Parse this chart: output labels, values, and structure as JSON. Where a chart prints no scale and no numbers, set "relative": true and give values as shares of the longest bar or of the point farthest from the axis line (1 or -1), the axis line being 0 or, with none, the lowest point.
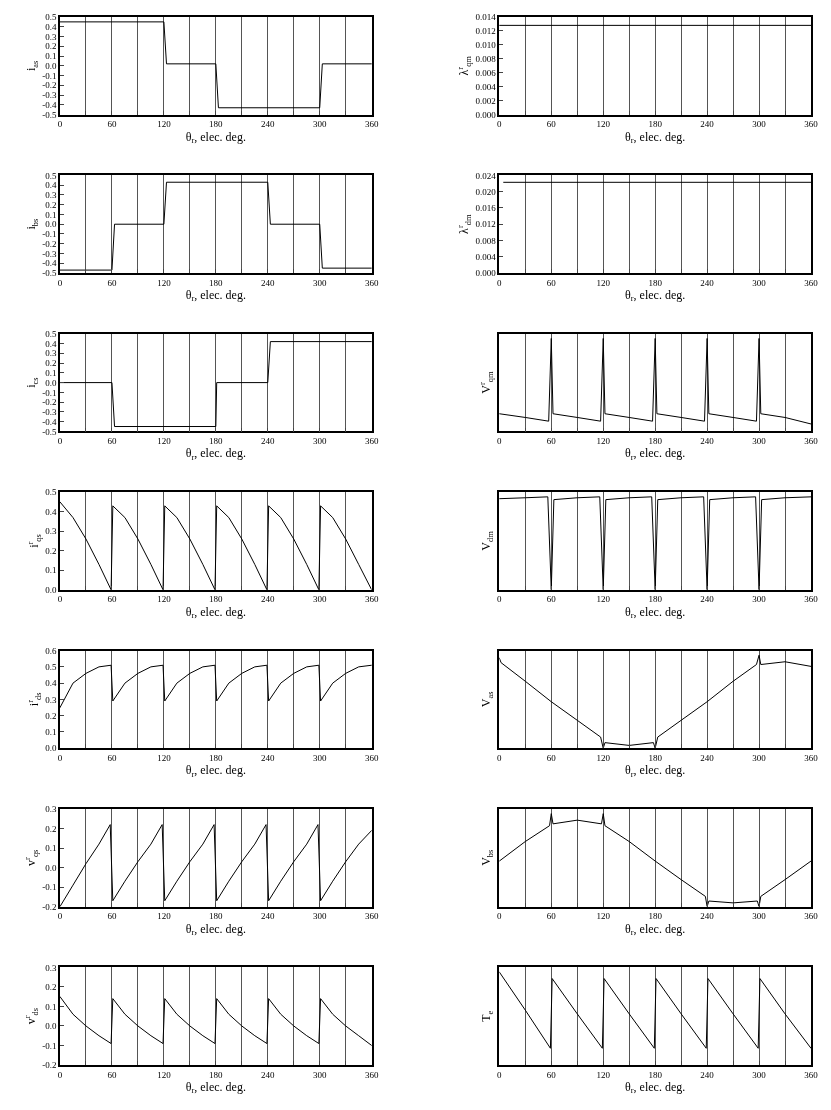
{
  "chart_data": [
    {
      "type": "line",
      "ylabel": "i$_{as}$",
      "xlabel": "θ$_{r}$, elec. deg.",
      "color": "#000000",
      "grid": "x",
      "x": [
        0,
        120,
        123,
        180,
        183,
        300,
        303,
        360
      ],
      "values": [
        0.45,
        0.45,
        0.02,
        0.02,
        -0.43,
        -0.43,
        0.02,
        0.02
      ],
      "xlim": [
        0,
        360
      ],
      "xticks": [
        0,
        {
          "value": 30,
          "label": null
        },
        60,
        {
          "value": 90,
          "label": null
        },
        120,
        {
          "value": 150,
          "label": null
        },
        180,
        {
          "value": 210,
          "label": null
        },
        240,
        {
          "value": 270,
          "label": null
        },
        300,
        {
          "value": 330,
          "label": null
        },
        360
      ],
      "ylim": [
        -0.5,
        0.5
      ],
      "yticks": [
        -0.5,
        -0.4,
        -0.3,
        -0.2,
        -0.1,
        {
          "value": 0,
          "label": "0.0"
        },
        0.1,
        0.2,
        0.3,
        0.4,
        0.5
      ]
    },
    {
      "type": "line",
      "ylabel": "λ$^{r}$$_{qm}$",
      "xlabel": "θ$_{r}$, elec. deg.",
      "color": "#000000",
      "grid": "x",
      "x": [
        0,
        360
      ],
      "values": [
        0.0128,
        0.0128
      ],
      "xlim": [
        0,
        360
      ],
      "xticks": [
        0,
        {
          "value": 30,
          "label": null
        },
        60,
        {
          "value": 90,
          "label": null
        },
        120,
        {
          "value": 150,
          "label": null
        },
        180,
        {
          "value": 210,
          "label": null
        },
        240,
        {
          "value": 270,
          "label": null
        },
        300,
        {
          "value": 330,
          "label": null
        },
        360
      ],
      "ylim": [
        0,
        0.014
      ],
      "yticks": [
        {
          "value": 0,
          "label": "0.000"
        },
        0.002,
        0.004,
        0.006,
        0.008,
        {
          "value": 0.01,
          "label": "0.010"
        },
        0.012,
        0.014
      ]
    },
    {
      "type": "line",
      "ylabel": "i$_{bs}$",
      "xlabel": "θ$_{r}$, elec. deg.",
      "color": "#000000",
      "grid": "x",
      "x": [
        0,
        60,
        63,
        120,
        123,
        240,
        243,
        300,
        303,
        360
      ],
      "values": [
        -0.47,
        -0.47,
        0.0,
        0.0,
        0.43,
        0.43,
        0.0,
        0.0,
        -0.45,
        -0.45
      ],
      "xlim": [
        0,
        360
      ],
      "xticks": [
        0,
        {
          "value": 30,
          "label": null
        },
        60,
        {
          "value": 90,
          "label": null
        },
        120,
        {
          "value": 150,
          "label": null
        },
        180,
        {
          "value": 210,
          "label": null
        },
        240,
        {
          "value": 270,
          "label": null
        },
        300,
        {
          "value": 330,
          "label": null
        },
        360
      ],
      "ylim": [
        -0.5,
        0.5
      ],
      "yticks": [
        -0.5,
        -0.4,
        -0.3,
        -0.2,
        -0.1,
        {
          "value": 0,
          "label": "0.0"
        },
        0.1,
        0.2,
        0.3,
        0.4,
        0.5
      ]
    },
    {
      "type": "line",
      "ylabel": "λ$^{r}$$_{dm}$",
      "xlabel": "θ$_{r}$, elec. deg.",
      "color": "#000000",
      "grid": "x",
      "x": [
        5,
        360
      ],
      "values": [
        0.0223,
        0.0223
      ],
      "xlim": [
        0,
        360
      ],
      "xticks": [
        0,
        {
          "value": 30,
          "label": null
        },
        60,
        {
          "value": 90,
          "label": null
        },
        120,
        {
          "value": 150,
          "label": null
        },
        180,
        {
          "value": 210,
          "label": null
        },
        240,
        {
          "value": 270,
          "label": null
        },
        300,
        {
          "value": 330,
          "label": null
        },
        360
      ],
      "ylim": [
        0,
        0.024
      ],
      "yticks": [
        {
          "value": 0,
          "label": "0.000"
        },
        0.004,
        0.008,
        0.012,
        0.016,
        {
          "value": 0.02,
          "label": "0.020"
        },
        0.024
      ]
    },
    {
      "type": "line",
      "ylabel": "i$_{cs}$",
      "xlabel": "θ$_{r}$, elec. deg.",
      "color": "#000000",
      "grid": "x",
      "x": [
        0,
        60,
        63,
        180,
        181,
        240,
        243,
        360
      ],
      "values": [
        0.0,
        0.0,
        -0.45,
        -0.45,
        0.0,
        0.0,
        0.42,
        0.42
      ],
      "xlim": [
        0,
        360
      ],
      "xticks": [
        0,
        {
          "value": 30,
          "label": null
        },
        60,
        {
          "value": 90,
          "label": null
        },
        120,
        {
          "value": 150,
          "label": null
        },
        180,
        {
          "value": 210,
          "label": null
        },
        240,
        {
          "value": 270,
          "label": null
        },
        300,
        {
          "value": 330,
          "label": null
        },
        360
      ],
      "ylim": [
        -0.5,
        0.5
      ],
      "yticks": [
        -0.5,
        -0.4,
        -0.3,
        -0.2,
        -0.1,
        {
          "value": 0,
          "label": "0.0"
        },
        0.1,
        0.2,
        0.3,
        0.4,
        0.5
      ]
    },
    {
      "type": "line",
      "relative": true,
      "tick_labels": "x",
      "ylabel": "V$^{r}$$_{qm}$",
      "xlabel": "θ$_{r}$, elec. deg.",
      "color": "#000000",
      "grid": "x",
      "x": [
        0,
        30,
        57,
        60,
        62,
        90,
        117,
        120,
        122,
        150,
        177,
        180,
        182,
        210,
        237,
        240,
        242,
        270,
        297,
        300,
        302,
        330,
        360
      ],
      "values": [
        0.19,
        0.15,
        0.11,
        1.0,
        0.19,
        0.15,
        0.11,
        1.0,
        0.19,
        0.15,
        0.11,
        1.0,
        0.19,
        0.15,
        0.11,
        1.0,
        0.19,
        0.15,
        0.11,
        1.0,
        0.19,
        0.15,
        0.08
      ],
      "xlim": [
        0,
        360
      ],
      "xticks": [
        0,
        {
          "value": 30,
          "label": null
        },
        60,
        {
          "value": 90,
          "label": null
        },
        120,
        {
          "value": 150,
          "label": null
        },
        180,
        {
          "value": 210,
          "label": null
        },
        240,
        {
          "value": 270,
          "label": null
        },
        300,
        {
          "value": 330,
          "label": null
        },
        360
      ]
    },
    {
      "type": "line",
      "ylabel": "i$^{r}$$_{qs}$",
      "xlabel": "θ$_{r}$, elec. deg.",
      "color": "#000000",
      "grid": "x",
      "x": [
        0,
        15,
        30,
        45,
        59,
        61,
        75,
        90,
        105,
        119,
        121,
        135,
        150,
        165,
        179,
        181,
        195,
        210,
        225,
        239,
        241,
        255,
        270,
        285,
        299,
        301,
        315,
        330,
        345,
        360
      ],
      "values": [
        0.45,
        0.37,
        0.26,
        0.13,
        0.0,
        0.43,
        0.37,
        0.26,
        0.13,
        0.0,
        0.43,
        0.37,
        0.26,
        0.13,
        0.0,
        0.43,
        0.37,
        0.26,
        0.13,
        0.0,
        0.43,
        0.37,
        0.26,
        0.13,
        0.0,
        0.43,
        0.37,
        0.26,
        0.13,
        0.0
      ],
      "xlim": [
        0,
        360
      ],
      "xticks": [
        0,
        {
          "value": 30,
          "label": null
        },
        60,
        {
          "value": 90,
          "label": null
        },
        120,
        {
          "value": 150,
          "label": null
        },
        180,
        {
          "value": 210,
          "label": null
        },
        240,
        {
          "value": 270,
          "label": null
        },
        300,
        {
          "value": 330,
          "label": null
        },
        360
      ],
      "ylim": [
        0,
        0.5
      ],
      "yticks": [
        {
          "value": 0,
          "label": "0.0"
        },
        0.1,
        0.2,
        0.3,
        0.4,
        0.5
      ]
    },
    {
      "type": "line",
      "relative": true,
      "tick_labels": "x",
      "ylabel": "V$_{dm}$",
      "xlabel": "θ$_{r}$, elec. deg.",
      "color": "#000000",
      "grid": "x",
      "x": [
        0,
        30,
        56,
        60,
        63,
        90,
        116,
        120,
        123,
        150,
        176,
        180,
        183,
        210,
        236,
        240,
        243,
        270,
        296,
        300,
        303,
        330,
        360
      ],
      "values": [
        0.98,
        0.99,
        1.0,
        0.0,
        0.97,
        0.99,
        1.0,
        0.0,
        0.97,
        0.99,
        1.0,
        0.0,
        0.97,
        0.99,
        1.0,
        0.0,
        0.97,
        0.99,
        1.0,
        0.0,
        0.97,
        0.99,
        1.0
      ],
      "xlim": [
        0,
        360
      ],
      "xticks": [
        0,
        {
          "value": 30,
          "label": null
        },
        60,
        {
          "value": 90,
          "label": null
        },
        120,
        {
          "value": 150,
          "label": null
        },
        180,
        {
          "value": 210,
          "label": null
        },
        240,
        {
          "value": 270,
          "label": null
        },
        300,
        {
          "value": 330,
          "label": null
        },
        360
      ]
    },
    {
      "type": "line",
      "ylabel": "i$^{r}$$_{ds}$",
      "xlabel": "θ$_{r}$, elec. deg.",
      "color": "#000000",
      "grid": "x",
      "x": [
        0,
        15,
        30,
        45,
        59,
        61,
        75,
        90,
        105,
        119,
        121,
        135,
        150,
        165,
        179,
        181,
        195,
        210,
        225,
        239,
        241,
        255,
        270,
        285,
        299,
        301,
        315,
        330,
        345,
        360
      ],
      "values": [
        0.25,
        0.4,
        0.46,
        0.5,
        0.51,
        0.29,
        0.4,
        0.46,
        0.5,
        0.51,
        0.29,
        0.4,
        0.46,
        0.5,
        0.51,
        0.29,
        0.4,
        0.46,
        0.5,
        0.51,
        0.29,
        0.4,
        0.46,
        0.5,
        0.51,
        0.29,
        0.4,
        0.46,
        0.5,
        0.51
      ],
      "xlim": [
        0,
        360
      ],
      "xticks": [
        0,
        {
          "value": 30,
          "label": null
        },
        60,
        {
          "value": 90,
          "label": null
        },
        120,
        {
          "value": 150,
          "label": null
        },
        180,
        {
          "value": 210,
          "label": null
        },
        240,
        {
          "value": 270,
          "label": null
        },
        300,
        {
          "value": 330,
          "label": null
        },
        360
      ],
      "ylim": [
        0,
        0.6
      ],
      "yticks": [
        {
          "value": 0,
          "label": "0.0"
        },
        0.1,
        0.2,
        0.3,
        0.4,
        0.5,
        0.6
      ]
    },
    {
      "type": "line",
      "relative": true,
      "tick_labels": "x",
      "ylabel": "V$_{as}$",
      "xlabel": "θ$_{r}$, elec. deg.",
      "color": "#000000",
      "grid": "x",
      "x": [
        0,
        2,
        30,
        60,
        90,
        117,
        120,
        122,
        150,
        178,
        180,
        183,
        210,
        240,
        270,
        297,
        300,
        302,
        330,
        360
      ],
      "values": [
        0.97,
        0.92,
        0.72,
        0.5,
        0.3,
        0.12,
        0.0,
        0.06,
        0.03,
        0.06,
        0.0,
        0.12,
        0.3,
        0.5,
        0.72,
        0.9,
        1.0,
        0.9,
        0.93,
        0.88
      ],
      "xlim": [
        0,
        360
      ],
      "xticks": [
        0,
        {
          "value": 30,
          "label": null
        },
        60,
        {
          "value": 90,
          "label": null
        },
        120,
        {
          "value": 150,
          "label": null
        },
        180,
        {
          "value": 210,
          "label": null
        },
        240,
        {
          "value": 270,
          "label": null
        },
        300,
        {
          "value": 330,
          "label": null
        },
        360
      ]
    },
    {
      "type": "line",
      "ylabel": "v$^{r}$$_{qs}$",
      "xlabel": "θ$_{r}$, elec. deg.",
      "color": "#000000",
      "grid": "x",
      "x": [
        0,
        15,
        30,
        45,
        58,
        61,
        75,
        90,
        105,
        118,
        121,
        135,
        150,
        165,
        178,
        181,
        195,
        210,
        225,
        238,
        241,
        255,
        270,
        285,
        298,
        301,
        315,
        330,
        345,
        360
      ],
      "values": [
        -0.2,
        -0.09,
        0.02,
        0.12,
        0.22,
        -0.17,
        -0.07,
        0.03,
        0.12,
        0.22,
        -0.17,
        -0.07,
        0.03,
        0.12,
        0.22,
        -0.17,
        -0.07,
        0.03,
        0.12,
        0.22,
        -0.17,
        -0.07,
        0.03,
        0.12,
        0.22,
        -0.17,
        -0.07,
        0.03,
        0.12,
        0.19
      ],
      "xlim": [
        0,
        360
      ],
      "xticks": [
        0,
        {
          "value": 30,
          "label": null
        },
        60,
        {
          "value": 90,
          "label": null
        },
        120,
        {
          "value": 150,
          "label": null
        },
        180,
        {
          "value": 210,
          "label": null
        },
        240,
        {
          "value": 270,
          "label": null
        },
        300,
        {
          "value": 330,
          "label": null
        },
        360
      ],
      "ylim": [
        -0.2,
        0.3
      ],
      "yticks": [
        -0.2,
        -0.1,
        {
          "value": 0,
          "label": "0.0"
        },
        0.1,
        0.2,
        0.3
      ]
    },
    {
      "type": "line",
      "relative": true,
      "tick_labels": "x",
      "ylabel": "V$_{bs}$",
      "xlabel": "θ$_{r}$, elec. deg.",
      "color": "#000000",
      "grid": "x",
      "x": [
        0,
        30,
        58,
        60,
        62,
        90,
        118,
        120,
        122,
        150,
        180,
        210,
        238,
        240,
        242,
        270,
        298,
        300,
        302,
        330,
        360
      ],
      "values": [
        0.49,
        0.7,
        0.87,
        1.0,
        0.89,
        0.93,
        0.89,
        1.0,
        0.87,
        0.7,
        0.49,
        0.29,
        0.11,
        0.0,
        0.06,
        0.04,
        0.06,
        0.0,
        0.11,
        0.29,
        0.49
      ],
      "xlim": [
        0,
        360
      ],
      "xticks": [
        0,
        {
          "value": 30,
          "label": null
        },
        60,
        {
          "value": 90,
          "label": null
        },
        120,
        {
          "value": 150,
          "label": null
        },
        180,
        {
          "value": 210,
          "label": null
        },
        240,
        {
          "value": 270,
          "label": null
        },
        300,
        {
          "value": 330,
          "label": null
        },
        360
      ]
    },
    {
      "type": "line",
      "ylabel": "v$^{r}$$_{ds}$",
      "xlabel": "θ$_{r}$, elec. deg.",
      "color": "#000000",
      "grid": "x",
      "x": [
        0,
        15,
        30,
        45,
        59,
        61,
        75,
        90,
        105,
        119,
        121,
        135,
        150,
        165,
        179,
        181,
        195,
        210,
        225,
        239,
        241,
        255,
        270,
        285,
        299,
        301,
        315,
        330,
        345,
        360
      ],
      "values": [
        0.15,
        0.06,
        0.0,
        -0.05,
        -0.09,
        0.14,
        0.06,
        0.0,
        -0.05,
        -0.09,
        0.14,
        0.06,
        0.0,
        -0.05,
        -0.09,
        0.14,
        0.06,
        0.0,
        -0.05,
        -0.09,
        0.14,
        0.06,
        0.0,
        -0.05,
        -0.09,
        0.14,
        0.06,
        0.0,
        -0.05,
        -0.1
      ],
      "xlim": [
        0,
        360
      ],
      "xticks": [
        0,
        {
          "value": 30,
          "label": null
        },
        60,
        {
          "value": 90,
          "label": null
        },
        120,
        {
          "value": 150,
          "label": null
        },
        180,
        {
          "value": 210,
          "label": null
        },
        240,
        {
          "value": 270,
          "label": null
        },
        300,
        {
          "value": 330,
          "label": null
        },
        360
      ],
      "ylim": [
        -0.2,
        0.3
      ],
      "yticks": [
        -0.2,
        -0.1,
        {
          "value": 0,
          "label": "0.0"
        },
        0.1,
        0.2,
        0.3
      ]
    },
    {
      "type": "line",
      "relative": true,
      "tick_labels": "x",
      "ylabel": "T$_{e}$",
      "xlabel": "θ$_{r}$, elec. deg.",
      "color": "#000000",
      "grid": "x",
      "x": [
        0,
        30,
        59,
        61,
        90,
        119,
        121,
        150,
        179,
        181,
        210,
        239,
        241,
        270,
        299,
        301,
        330,
        360
      ],
      "values": [
        1.0,
        0.59,
        0.18,
        0.93,
        0.55,
        0.18,
        0.93,
        0.55,
        0.18,
        0.93,
        0.55,
        0.18,
        0.93,
        0.55,
        0.18,
        0.93,
        0.55,
        0.18
      ],
      "xlim": [
        0,
        360
      ],
      "xticks": [
        0,
        {
          "value": 30,
          "label": null
        },
        60,
        {
          "value": 90,
          "label": null
        },
        120,
        {
          "value": 150,
          "label": null
        },
        180,
        {
          "value": 210,
          "label": null
        },
        240,
        {
          "value": 270,
          "label": null
        },
        300,
        {
          "value": 330,
          "label": null
        },
        360
      ]
    }
  ]
}
